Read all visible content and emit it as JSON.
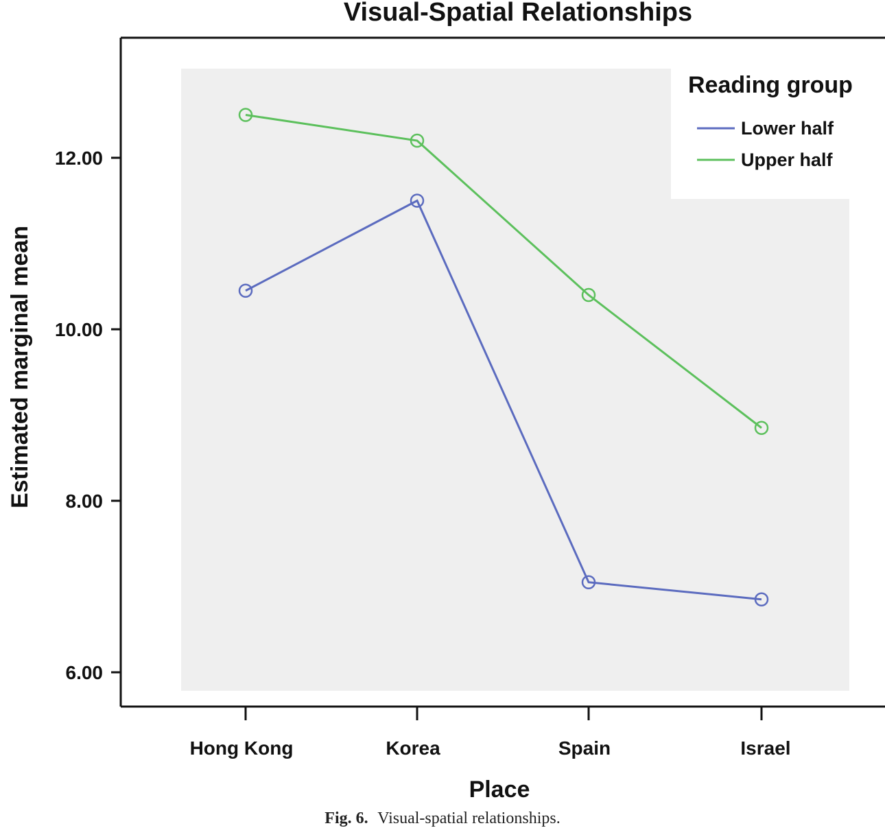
{
  "chart_data": {
    "type": "line",
    "title": "Visual-Spatial Relationships",
    "xlabel": "Place",
    "ylabel": "Estimated marginal mean",
    "categories": [
      "Hong Kong",
      "Korea",
      "Spain",
      "Israel"
    ],
    "yticks": [
      "6.00",
      "8.00",
      "10.00",
      "12.00"
    ],
    "ylim": [
      6.0,
      12.0
    ],
    "legend": {
      "title": "Reading group",
      "placement": "top-right"
    },
    "series": [
      {
        "name": "Lower half",
        "color": "#5b6bbf",
        "values": [
          10.45,
          11.5,
          7.05,
          6.85
        ]
      },
      {
        "name": "Upper half",
        "color": "#5cc05c",
        "values": [
          12.5,
          12.2,
          10.4,
          8.85
        ]
      }
    ],
    "background": "#efefef",
    "grid": false
  },
  "caption": {
    "prefix": "Fig. 6.",
    "text": "Visual-spatial relationships."
  }
}
